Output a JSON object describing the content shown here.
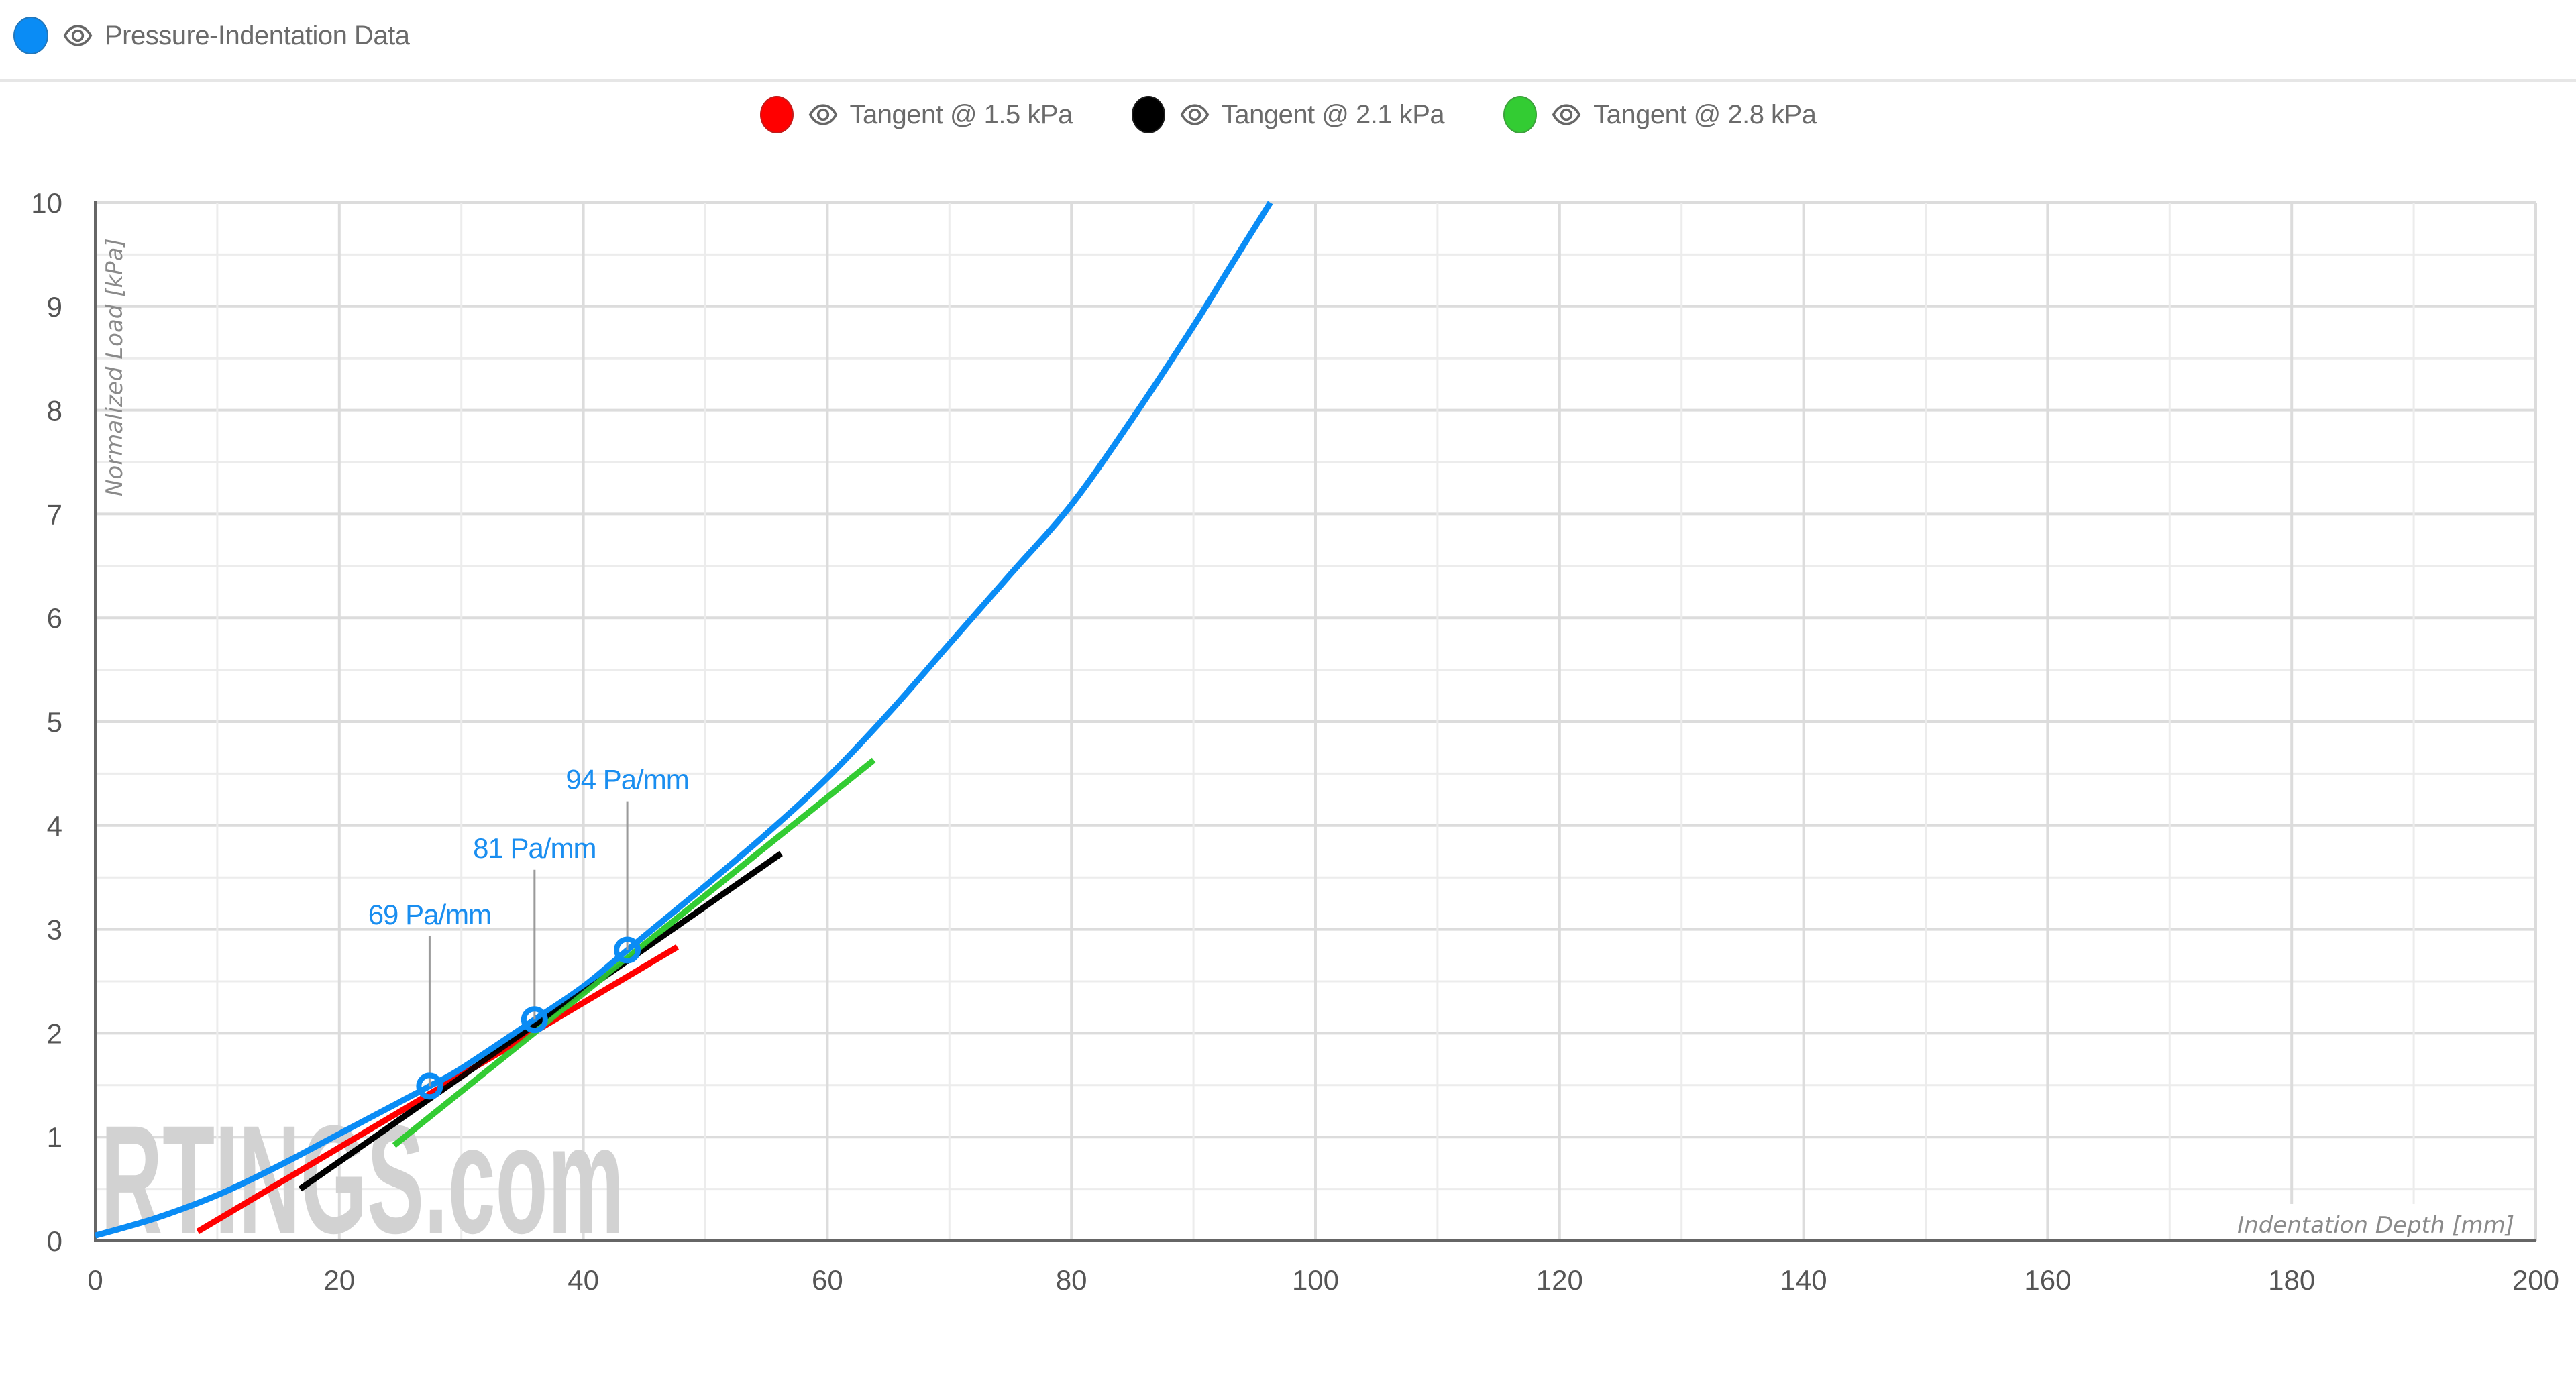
{
  "header": {
    "series_label": "Pressure-Indentation Data",
    "series_color": "#0a8cf5",
    "visibility_icon": "eye-icon"
  },
  "legend": [
    {
      "label": "Tangent @ 1.5 kPa",
      "color": "#ff0000",
      "icon": "eye-icon"
    },
    {
      "label": "Tangent @ 2.1 kPa",
      "color": "#000000",
      "icon": "eye-icon"
    },
    {
      "label": "Tangent @ 2.8 kPa",
      "color": "#33cc33",
      "icon": "eye-icon"
    }
  ],
  "watermark": "RTINGS.com",
  "chart_data": {
    "type": "line",
    "title": "",
    "xlabel": "Indentation Depth [mm]",
    "ylabel": "Normalized Load [kPa]",
    "xlim": [
      0,
      200
    ],
    "ylim": [
      0,
      10
    ],
    "x_ticks": [
      0,
      20,
      40,
      60,
      80,
      100,
      120,
      140,
      160,
      180,
      200
    ],
    "y_ticks": [
      0,
      1,
      2,
      3,
      4,
      5,
      6,
      7,
      8,
      9,
      10
    ],
    "grid": true,
    "legend_position": "top",
    "series": [
      {
        "name": "Pressure-Indentation Data",
        "color": "#0a8cf5",
        "x": [
          0,
          5,
          10,
          15,
          20,
          25,
          27.4,
          30,
          36.0,
          40,
          43.6,
          50,
          55,
          60,
          65,
          70,
          75,
          80,
          85,
          90,
          93,
          96.3
        ],
        "y": [
          0.05,
          0.22,
          0.44,
          0.72,
          1.03,
          1.34,
          1.49,
          1.66,
          2.13,
          2.45,
          2.8,
          3.42,
          3.92,
          4.46,
          5.08,
          5.75,
          6.42,
          7.09,
          7.92,
          8.81,
          9.38,
          10.0
        ]
      },
      {
        "name": "Tangent @ 1.5 kPa",
        "color": "#ff0000",
        "x": [
          8.4,
          47.7
        ],
        "y": [
          0.09,
          2.83
        ]
      },
      {
        "name": "Tangent @ 2.1 kPa",
        "color": "#000000",
        "x": [
          16.8,
          56.2
        ],
        "y": [
          0.5,
          3.73
        ]
      },
      {
        "name": "Tangent @ 2.8 kPa",
        "color": "#33cc33",
        "x": [
          24.5,
          63.8
        ],
        "y": [
          0.92,
          4.63
        ]
      }
    ],
    "markers": [
      {
        "x": 27.4,
        "y": 1.49,
        "label": "69 Pa/mm"
      },
      {
        "x": 36.0,
        "y": 2.13,
        "label": "81 Pa/mm"
      },
      {
        "x": 43.6,
        "y": 2.8,
        "label": "94 Pa/mm"
      }
    ],
    "annotations": [
      {
        "text": "69 Pa/mm",
        "x": 27.4,
        "label_y": 3.05
      },
      {
        "text": "81 Pa/mm",
        "x": 36.0,
        "label_y": 3.69
      },
      {
        "text": "94 Pa/mm",
        "x": 43.6,
        "label_y": 4.35
      }
    ]
  }
}
